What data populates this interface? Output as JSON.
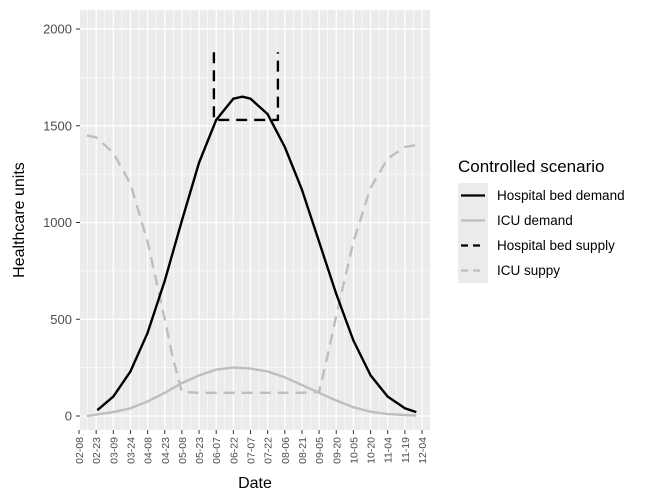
{
  "chart_data": {
    "type": "line",
    "xlabel": "Date",
    "ylabel": "Healthcare units",
    "ylim": [
      0,
      2000
    ],
    "y_ticks": [
      0,
      500,
      1000,
      1500,
      2000
    ],
    "x_ticks": [
      "02-08",
      "02-23",
      "03-09",
      "03-24",
      "04-08",
      "04-23",
      "05-08",
      "05-23",
      "06-07",
      "06-22",
      "07-07",
      "07-22",
      "08-06",
      "08-21",
      "09-05",
      "09-20",
      "10-05",
      "10-20",
      "11-04",
      "11-19",
      "12-04"
    ],
    "grid": true,
    "background": "#ebebeb",
    "legend": {
      "title": "Controlled scenario",
      "placement": "right"
    },
    "series": [
      {
        "name": "Hospital bed demand",
        "color": "#000000",
        "dash": "solid",
        "points": [
          [
            "02-24",
            30
          ],
          [
            "03-09",
            100
          ],
          [
            "03-24",
            230
          ],
          [
            "04-08",
            430
          ],
          [
            "04-23",
            700
          ],
          [
            "05-08",
            1010
          ],
          [
            "05-23",
            1310
          ],
          [
            "06-07",
            1530
          ],
          [
            "06-22",
            1640
          ],
          [
            "06-30",
            1650
          ],
          [
            "07-07",
            1640
          ],
          [
            "07-22",
            1560
          ],
          [
            "08-06",
            1390
          ],
          [
            "08-21",
            1170
          ],
          [
            "09-05",
            900
          ],
          [
            "09-20",
            630
          ],
          [
            "10-05",
            390
          ],
          [
            "10-20",
            210
          ],
          [
            "11-04",
            100
          ],
          [
            "11-19",
            40
          ],
          [
            "11-29",
            20
          ]
        ]
      },
      {
        "name": "ICU demand",
        "color": "#bebebe",
        "dash": "solid",
        "points": [
          [
            "02-15",
            0
          ],
          [
            "03-09",
            20
          ],
          [
            "03-24",
            40
          ],
          [
            "04-08",
            75
          ],
          [
            "04-23",
            120
          ],
          [
            "05-08",
            170
          ],
          [
            "05-23",
            210
          ],
          [
            "06-07",
            240
          ],
          [
            "06-22",
            250
          ],
          [
            "07-07",
            245
          ],
          [
            "07-22",
            230
          ],
          [
            "08-06",
            200
          ],
          [
            "08-21",
            160
          ],
          [
            "09-05",
            120
          ],
          [
            "09-20",
            80
          ],
          [
            "10-05",
            45
          ],
          [
            "10-20",
            22
          ],
          [
            "11-04",
            10
          ],
          [
            "11-19",
            5
          ],
          [
            "11-29",
            3
          ]
        ]
      },
      {
        "name": "Hospital bed supply",
        "color": "#000000",
        "dash": "dashed",
        "points": [
          [
            "06-05",
            1880
          ],
          [
            "06-05",
            1530
          ],
          [
            "07-31",
            1530
          ],
          [
            "07-31",
            1880
          ]
        ]
      },
      {
        "name": "ICU suppy",
        "color": "#bebebe",
        "dash": "dashed",
        "points": [
          [
            "02-15",
            1450
          ],
          [
            "02-23",
            1440
          ],
          [
            "03-09",
            1360
          ],
          [
            "03-24",
            1200
          ],
          [
            "04-08",
            900
          ],
          [
            "04-23",
            500
          ],
          [
            "04-30",
            300
          ],
          [
            "05-08",
            125
          ],
          [
            "05-23",
            120
          ],
          [
            "06-07",
            120
          ],
          [
            "06-22",
            120
          ],
          [
            "07-07",
            120
          ],
          [
            "07-22",
            120
          ],
          [
            "08-06",
            120
          ],
          [
            "08-21",
            120
          ],
          [
            "09-05",
            125
          ],
          [
            "09-12",
            300
          ],
          [
            "09-20",
            520
          ],
          [
            "10-05",
            900
          ],
          [
            "10-20",
            1180
          ],
          [
            "11-04",
            1330
          ],
          [
            "11-19",
            1390
          ],
          [
            "11-29",
            1400
          ]
        ]
      }
    ]
  }
}
